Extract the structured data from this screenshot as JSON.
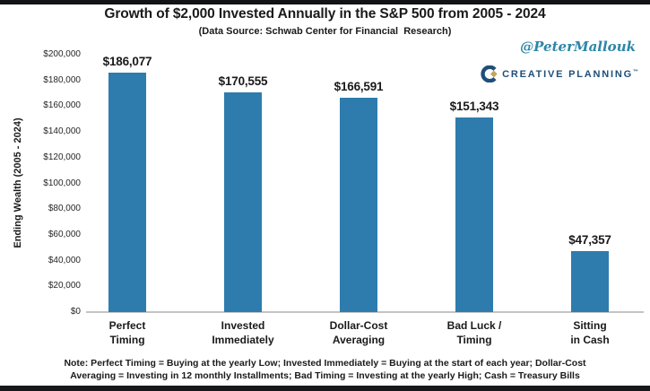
{
  "page": {
    "handle": "@PeterMallouk",
    "logo": {
      "icon": "creative-planning-c-mark",
      "text": "CREATIVE PLANNING",
      "tm": "™"
    },
    "note_lines": [
      "Note: Perfect Timing = Buying at the yearly Low; Invested Immediately = Buying at the start of each year; Dollar-Cost",
      "Averaging = Investing in 12 monthly Installments; Bad Timing = Investing at the yearly High; Cash = Treasury Bills"
    ]
  },
  "colors": {
    "bar": "#2e7cae",
    "axis_line": "#c4c4c4",
    "handle": "#2e86a6",
    "logo_navy": "#1f4e79",
    "logo_gold": "#c9a35b",
    "text": "#1a1a1a"
  },
  "chart_data": {
    "type": "bar",
    "title": "Growth of $2,000 Invested Annually in the S&P 500 from 2005 - 2024",
    "subtitle": "(Data Source: Schwab Center for Financial  Research)",
    "ylabel": "Ending Wealth (2005 - 2024)",
    "xlabel": "",
    "ylim": [
      0,
      200000
    ],
    "ytick_step": 20000,
    "ytick_labels": [
      "$0",
      "$20,000",
      "$40,000",
      "$60,000",
      "$80,000",
      "$100,000",
      "$120,000",
      "$140,000",
      "$160,000",
      "$180,000",
      "$200,000"
    ],
    "categories": [
      "Perfect Timing",
      "Invested Immediately",
      "Dollar-Cost Averaging",
      "Bad Luck / Timing",
      "Sitting in Cash"
    ],
    "category_lines": [
      [
        "Perfect",
        "Timing"
      ],
      [
        "Invested",
        "Immediately"
      ],
      [
        "Dollar-Cost",
        "Averaging"
      ],
      [
        "Bad Luck /",
        "Timing"
      ],
      [
        "Sitting",
        "in Cash"
      ]
    ],
    "values": [
      186077,
      170555,
      166591,
      151343,
      47357
    ],
    "value_labels": [
      "$186,077",
      "$170,555",
      "$166,591",
      "$151,343",
      "$47,357"
    ],
    "bar_color": "#2e7cae",
    "grid": false,
    "legend": null
  }
}
